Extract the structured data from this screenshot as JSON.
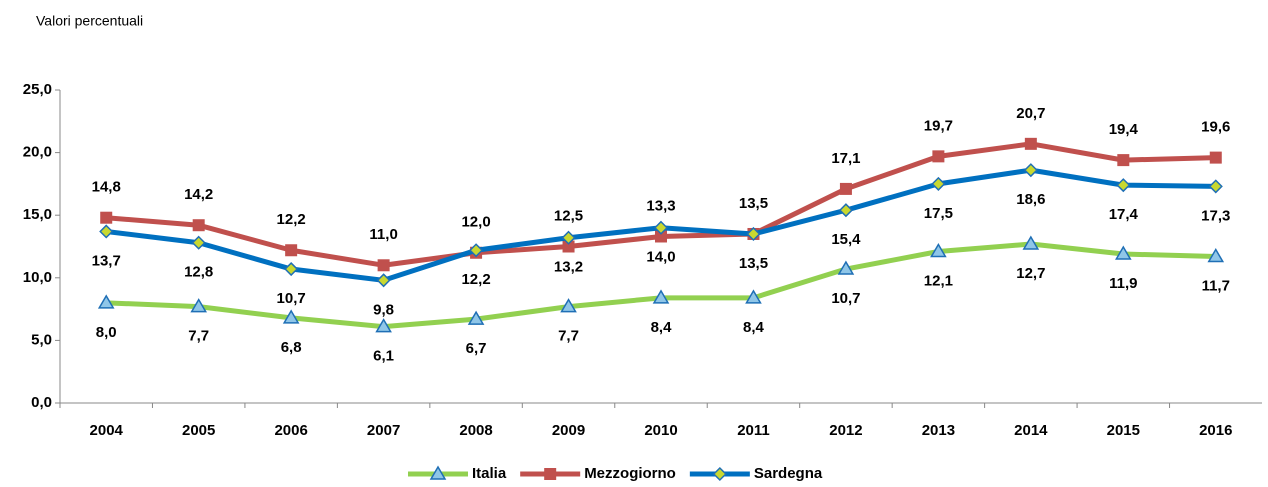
{
  "chart_data": {
    "type": "line",
    "subtitle": "Valori percentuali",
    "categories": [
      "2004",
      "2005",
      "2006",
      "2007",
      "2008",
      "2009",
      "2010",
      "2011",
      "2012",
      "2013",
      "2014",
      "2015",
      "2016"
    ],
    "series": [
      {
        "name": "Italia",
        "color": "#92d050",
        "marker": "triangle",
        "values": [
          8.0,
          7.7,
          6.8,
          6.1,
          6.7,
          7.7,
          8.4,
          8.4,
          10.7,
          12.1,
          12.7,
          11.9,
          11.7
        ],
        "value_labels": [
          "8,0",
          "7,7",
          "6,8",
          "6,1",
          "6,7",
          "7,7",
          "8,4",
          "8,4",
          "10,7",
          "12,1",
          "12,7",
          "11,9",
          "11,7"
        ]
      },
      {
        "name": "Mezzogiorno",
        "color": "#c0504d",
        "marker": "square",
        "values": [
          14.8,
          14.2,
          12.2,
          11.0,
          12.0,
          12.5,
          13.3,
          13.5,
          17.1,
          19.7,
          20.7,
          19.4,
          19.6
        ],
        "value_labels": [
          "14,8",
          "14,2",
          "12,2",
          "11,0",
          "12,0",
          "12,5",
          "13,3",
          "13,5",
          "17,1",
          "19,7",
          "20,7",
          "19,4",
          "19,6"
        ]
      },
      {
        "name": "Sardegna",
        "color": "#0070c0",
        "marker": "diamond",
        "values": [
          13.7,
          12.8,
          10.7,
          9.8,
          12.2,
          13.2,
          14.0,
          13.5,
          15.4,
          17.5,
          18.6,
          17.4,
          17.3
        ],
        "value_labels": [
          "13,7",
          "12,8",
          "10,7",
          "9,8",
          "12,2",
          "13,2",
          "14,0",
          "13,5",
          "15,4",
          "17,5",
          "18,6",
          "17,4",
          "17,3"
        ]
      }
    ],
    "ylim": [
      0,
      25
    ],
    "yticks": [
      {
        "value": 0,
        "label": "0,0"
      },
      {
        "value": 5,
        "label": "5,0"
      },
      {
        "value": 10,
        "label": "10,0"
      },
      {
        "value": 15,
        "label": "15,0"
      },
      {
        "value": 20,
        "label": "20,0"
      },
      {
        "value": 25,
        "label": "25,0"
      }
    ],
    "grid": false,
    "legend": "bottom"
  }
}
